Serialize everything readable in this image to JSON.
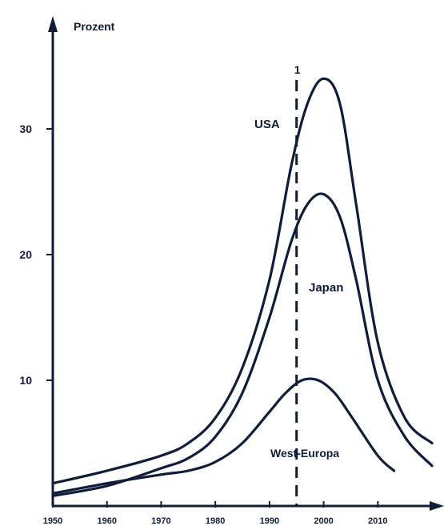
{
  "chart_data": {
    "type": "line",
    "title": "",
    "ylabel": "Prozent",
    "xlabel": "",
    "xlim": [
      1950,
      2020
    ],
    "ylim": [
      0,
      40
    ],
    "x_ticks": [
      "1950",
      "1960",
      "1970",
      "1980",
      "1990",
      "2000",
      "2010"
    ],
    "y_ticks": [
      "10",
      "20",
      "30"
    ],
    "grid": false,
    "marker_line": {
      "x": 1995,
      "label": "1"
    },
    "series": [
      {
        "name": "USA",
        "x": [
          1950,
          1960,
          1970,
          1975,
          1980,
          1985,
          1990,
          1994,
          1997,
          2000,
          2003,
          2006,
          2010,
          2015,
          2020
        ],
        "y": [
          1.8,
          2.8,
          4.0,
          5.0,
          7.0,
          11.0,
          18.0,
          27.0,
          32.0,
          34.0,
          32.0,
          24.0,
          13.0,
          7.0,
          5.0
        ]
      },
      {
        "name": "Japan",
        "x": [
          1950,
          1960,
          1970,
          1975,
          1980,
          1985,
          1990,
          1994,
          1997,
          2000,
          2003,
          2006,
          2010,
          2015,
          2020
        ],
        "y": [
          0.8,
          1.6,
          3.0,
          3.8,
          5.5,
          9.0,
          15.0,
          21.0,
          24.0,
          24.8,
          23.0,
          18.0,
          10.0,
          5.5,
          3.2
        ]
      },
      {
        "name": "West-Europa",
        "x": [
          1950,
          1960,
          1970,
          1975,
          1980,
          1985,
          1990,
          1993,
          1996,
          1999,
          2002,
          2005,
          2010,
          2013
        ],
        "y": [
          1.0,
          1.8,
          2.5,
          2.8,
          3.5,
          5.0,
          7.5,
          9.0,
          10.0,
          10.0,
          9.0,
          7.2,
          4.0,
          2.8
        ]
      }
    ]
  },
  "colors": {
    "ink": "#0f1d3a",
    "background": "#ffffff"
  }
}
